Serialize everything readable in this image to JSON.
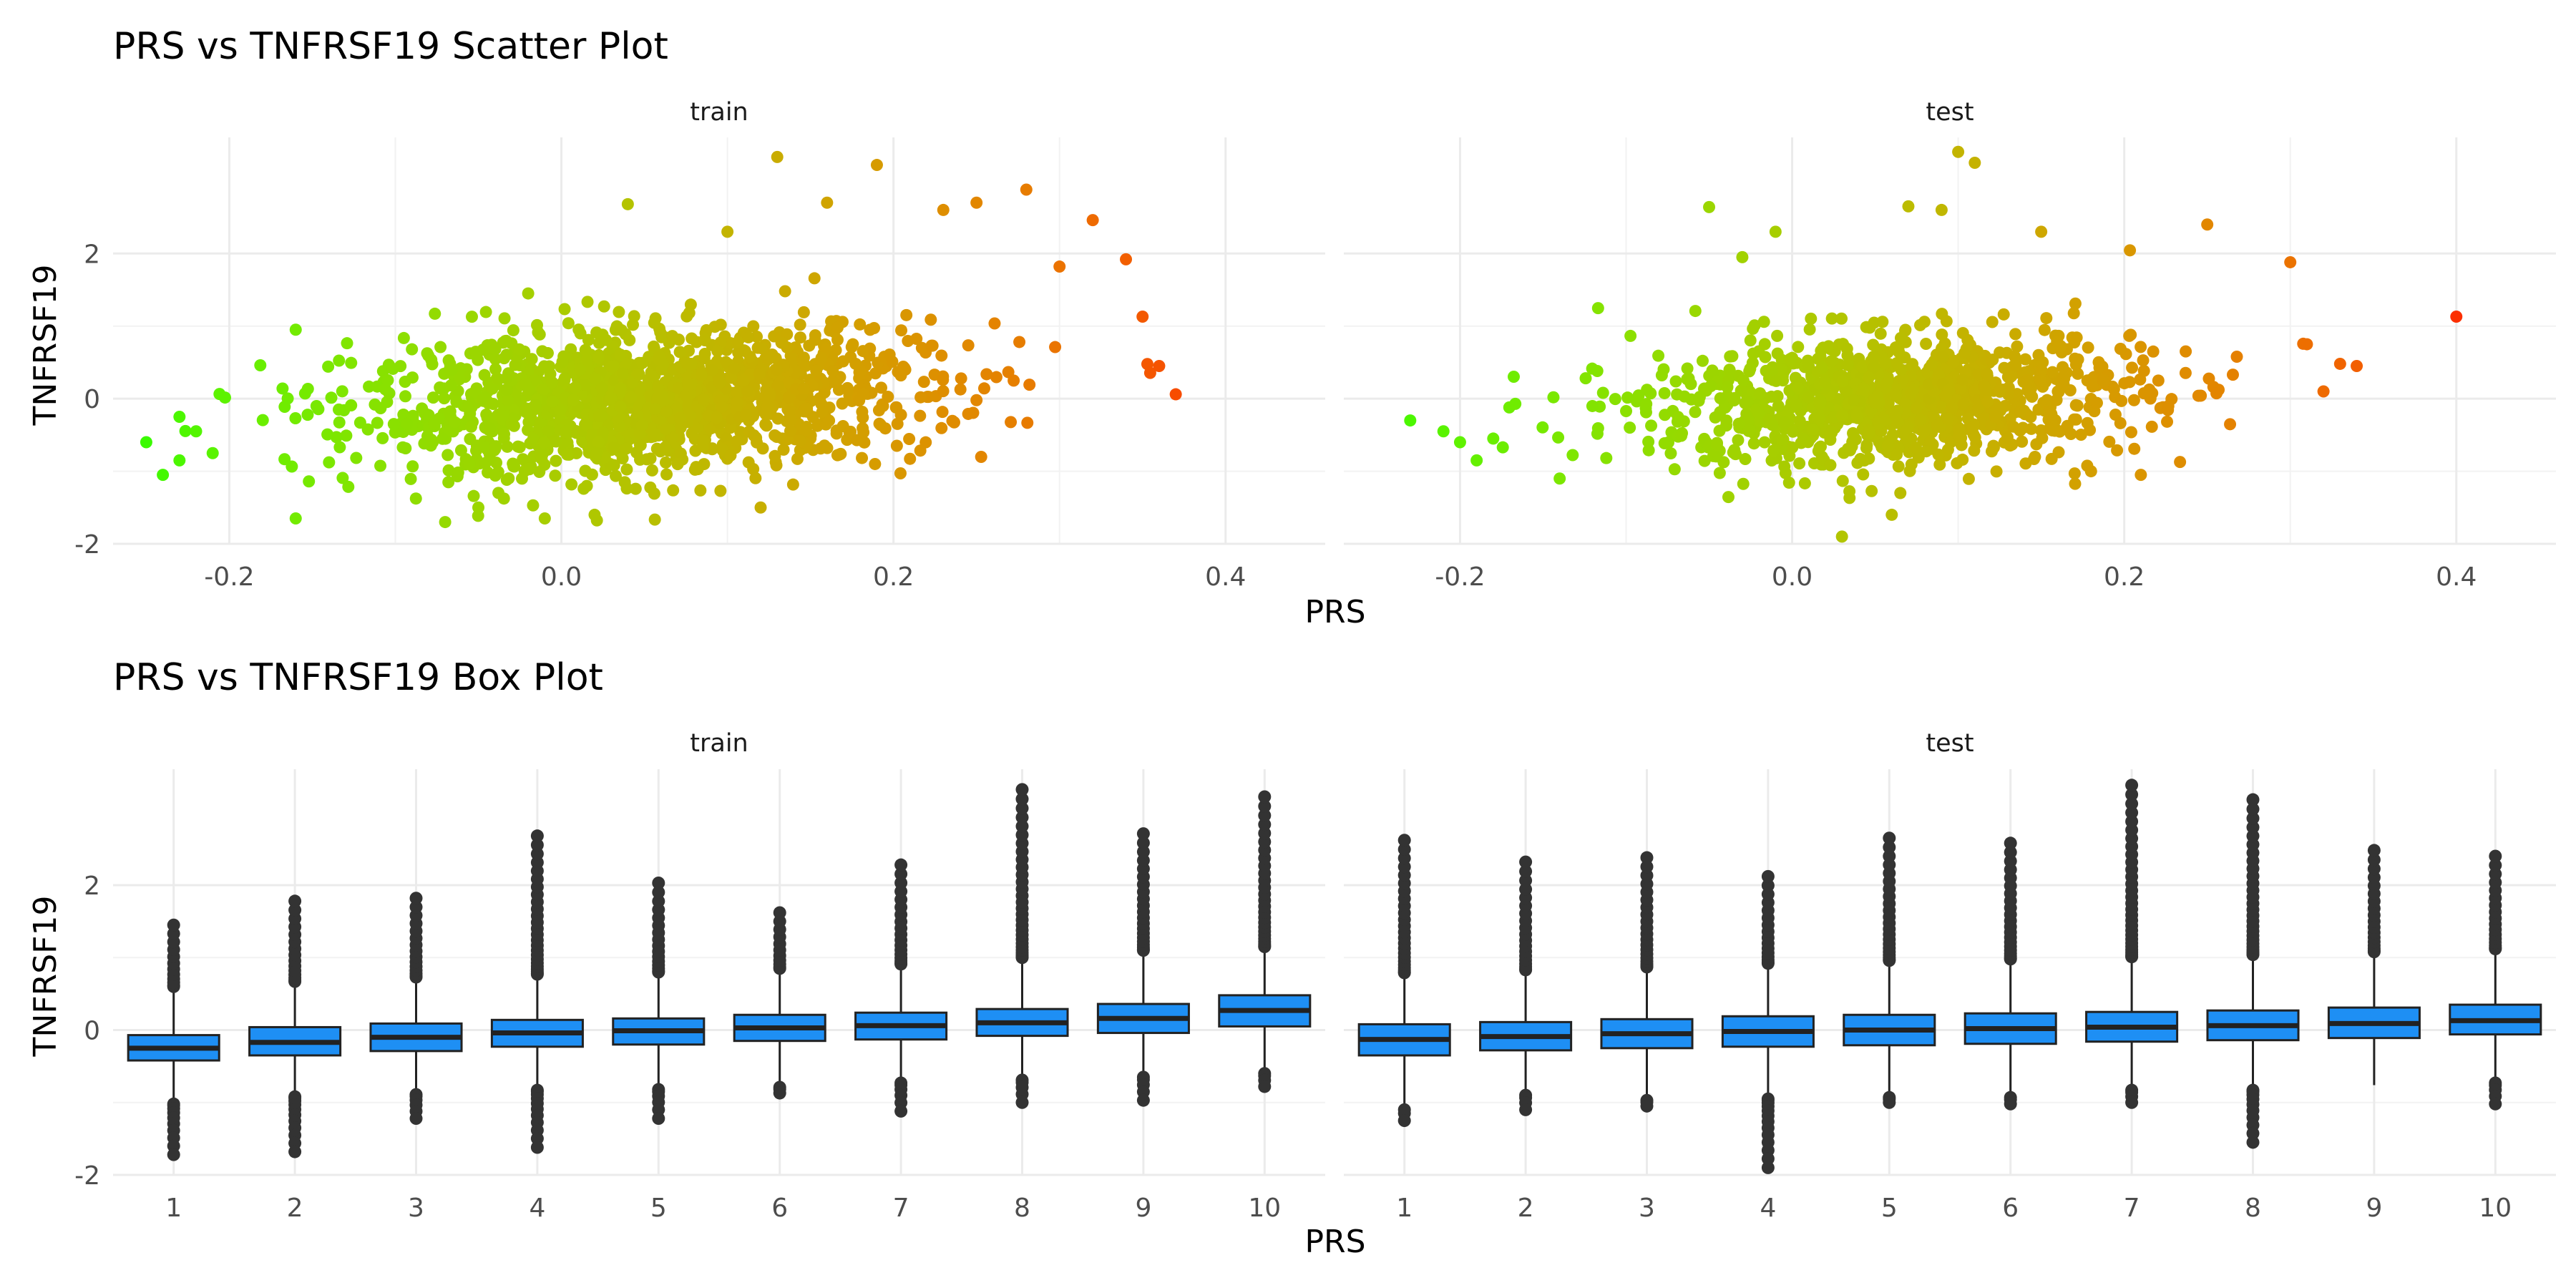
{
  "chart_data": [
    {
      "type": "scatter",
      "title": "PRS vs TNFRSF19 Scatter Plot",
      "xlabel": "PRS",
      "ylabel": "TNFRSF19",
      "xlim": [
        -0.27,
        0.46
      ],
      "ylim": [
        -2.0,
        3.6
      ],
      "x_ticks": [
        "-0.2",
        "0.0",
        "0.2",
        "0.4"
      ],
      "x_tick_values": [
        -0.2,
        0.0,
        0.2,
        0.4
      ],
      "y_ticks": [
        "-2",
        "0",
        "2"
      ],
      "y_tick_values": [
        -2,
        0,
        2
      ],
      "grid": true,
      "color_gradient": [
        "#00ff00",
        "#ff0000"
      ],
      "color_range": [
        -0.28,
        0.42
      ],
      "facets": [
        {
          "label": "train",
          "approx_n": 1500,
          "x_center": 0.05,
          "x_spread": 0.085,
          "trend_slope": 2.4,
          "y_intercept": -0.15,
          "y_noise_sd": 0.48,
          "outliers": [
            [
              -0.25,
              -0.6
            ],
            [
              -0.24,
              -1.05
            ],
            [
              -0.23,
              -0.85
            ],
            [
              -0.23,
              -0.25
            ],
            [
              -0.22,
              -0.45
            ],
            [
              -0.21,
              -0.75
            ],
            [
              -0.16,
              -1.65
            ],
            [
              -0.16,
              0.95
            ],
            [
              -0.09,
              0.68
            ],
            [
              -0.07,
              -1.7
            ],
            [
              -0.05,
              -1.5
            ],
            [
              -0.02,
              1.45
            ],
            [
              -0.01,
              -1.65
            ],
            [
              0.02,
              -1.6
            ],
            [
              0.04,
              2.68
            ],
            [
              0.1,
              2.3
            ],
            [
              0.12,
              -1.5
            ],
            [
              0.13,
              3.33
            ],
            [
              0.16,
              2.7
            ],
            [
              0.19,
              3.22
            ],
            [
              0.23,
              2.6
            ],
            [
              0.25,
              2.7
            ],
            [
              0.28,
              2.88
            ],
            [
              0.3,
              1.82
            ],
            [
              0.32,
              2.46
            ],
            [
              0.34,
              1.92
            ],
            [
              0.35,
              1.13
            ],
            [
              0.36,
              0.45
            ],
            [
              0.37,
              0.06
            ]
          ]
        },
        {
          "label": "test",
          "approx_n": 1100,
          "x_center": 0.06,
          "x_spread": 0.075,
          "trend_slope": 1.9,
          "y_intercept": -0.12,
          "y_noise_sd": 0.45,
          "outliers": [
            [
              -0.23,
              -0.3
            ],
            [
              -0.21,
              -0.45
            ],
            [
              -0.2,
              -0.6
            ],
            [
              -0.19,
              -0.85
            ],
            [
              -0.18,
              -0.55
            ],
            [
              -0.14,
              -1.1
            ],
            [
              -0.05,
              2.64
            ],
            [
              -0.03,
              1.95
            ],
            [
              -0.01,
              2.3
            ],
            [
              0.03,
              -1.9
            ],
            [
              0.06,
              -1.6
            ],
            [
              0.07,
              2.65
            ],
            [
              0.09,
              2.6
            ],
            [
              0.1,
              3.4
            ],
            [
              0.11,
              3.25
            ],
            [
              0.15,
              2.3
            ],
            [
              0.18,
              -1.0
            ],
            [
              0.21,
              -1.05
            ],
            [
              0.25,
              2.4
            ],
            [
              0.3,
              1.88
            ],
            [
              0.31,
              0.75
            ],
            [
              0.32,
              0.1
            ],
            [
              0.33,
              0.48
            ],
            [
              0.34,
              0.45
            ],
            [
              0.4,
              1.13
            ]
          ]
        }
      ]
    },
    {
      "type": "box",
      "title": "PRS vs TNFRSF19 Box Plot",
      "xlabel": "PRS",
      "ylabel": "TNFRSF19",
      "categories": [
        "1",
        "2",
        "3",
        "4",
        "5",
        "6",
        "7",
        "8",
        "9",
        "10"
      ],
      "ylim": [
        -2.0,
        3.6
      ],
      "y_ticks": [
        "-2",
        "0",
        "2"
      ],
      "y_tick_values": [
        -2,
        0,
        2
      ],
      "grid": true,
      "box_fill": "#1e8ff4",
      "box_stroke": "#222222",
      "facets": [
        {
          "label": "train",
          "boxes": [
            {
              "q1": -0.42,
              "median": -0.25,
              "q3": -0.07,
              "wlo": -0.97,
              "whi": 0.55,
              "out_hi_top": 1.45,
              "out_lo_bottom": -1.72
            },
            {
              "q1": -0.35,
              "median": -0.17,
              "q3": 0.04,
              "wlo": -0.87,
              "whi": 0.62,
              "out_hi_top": 1.78,
              "out_lo_bottom": -1.68
            },
            {
              "q1": -0.29,
              "median": -0.1,
              "q3": 0.09,
              "wlo": -0.84,
              "whi": 0.68,
              "out_hi_top": 1.82,
              "out_lo_bottom": -1.22
            },
            {
              "q1": -0.23,
              "median": -0.04,
              "q3": 0.14,
              "wlo": -0.78,
              "whi": 0.72,
              "out_hi_top": 2.68,
              "out_lo_bottom": -1.62
            },
            {
              "q1": -0.2,
              "median": -0.01,
              "q3": 0.16,
              "wlo": -0.77,
              "whi": 0.75,
              "out_hi_top": 2.03,
              "out_lo_bottom": -1.22
            },
            {
              "q1": -0.15,
              "median": 0.03,
              "q3": 0.21,
              "wlo": -0.74,
              "whi": 0.8,
              "out_hi_top": 1.62,
              "out_lo_bottom": -0.87
            },
            {
              "q1": -0.13,
              "median": 0.06,
              "q3": 0.24,
              "wlo": -0.68,
              "whi": 0.86,
              "out_hi_top": 2.28,
              "out_lo_bottom": -1.12
            },
            {
              "q1": -0.08,
              "median": 0.1,
              "q3": 0.29,
              "wlo": -0.64,
              "whi": 0.95,
              "out_hi_top": 3.32,
              "out_lo_bottom": -1.0
            },
            {
              "q1": -0.04,
              "median": 0.16,
              "q3": 0.36,
              "wlo": -0.6,
              "whi": 1.05,
              "out_hi_top": 2.71,
              "out_lo_bottom": -0.97
            },
            {
              "q1": 0.05,
              "median": 0.27,
              "q3": 0.48,
              "wlo": -0.55,
              "whi": 1.1,
              "out_hi_top": 3.22,
              "out_lo_bottom": -0.78
            }
          ]
        },
        {
          "label": "test",
          "boxes": [
            {
              "q1": -0.35,
              "median": -0.13,
              "q3": 0.08,
              "wlo": -1.05,
              "whi": 0.74,
              "out_hi_top": 2.62,
              "out_lo_bottom": -1.25
            },
            {
              "q1": -0.28,
              "median": -0.09,
              "q3": 0.11,
              "wlo": -0.85,
              "whi": 0.78,
              "out_hi_top": 2.32,
              "out_lo_bottom": -1.1
            },
            {
              "q1": -0.25,
              "median": -0.05,
              "q3": 0.15,
              "wlo": -0.92,
              "whi": 0.82,
              "out_hi_top": 2.38,
              "out_lo_bottom": -1.05
            },
            {
              "q1": -0.23,
              "median": -0.02,
              "q3": 0.19,
              "wlo": -0.9,
              "whi": 0.87,
              "out_hi_top": 2.12,
              "out_lo_bottom": -1.9
            },
            {
              "q1": -0.21,
              "median": 0.0,
              "q3": 0.21,
              "wlo": -0.88,
              "whi": 0.91,
              "out_hi_top": 2.65,
              "out_lo_bottom": -1.0
            },
            {
              "q1": -0.19,
              "median": 0.02,
              "q3": 0.23,
              "wlo": -0.88,
              "whi": 0.93,
              "out_hi_top": 2.58,
              "out_lo_bottom": -1.02
            },
            {
              "q1": -0.16,
              "median": 0.04,
              "q3": 0.25,
              "wlo": -0.78,
              "whi": 0.96,
              "out_hi_top": 3.38,
              "out_lo_bottom": -1.0
            },
            {
              "q1": -0.14,
              "median": 0.06,
              "q3": 0.27,
              "wlo": -0.78,
              "whi": 0.99,
              "out_hi_top": 3.18,
              "out_lo_bottom": -1.55
            },
            {
              "q1": -0.11,
              "median": 0.09,
              "q3": 0.31,
              "wlo": -0.76,
              "whi": 1.03,
              "out_hi_top": 2.48,
              "out_lo_bottom": -0.76
            },
            {
              "q1": -0.06,
              "median": 0.13,
              "q3": 0.35,
              "wlo": -0.68,
              "whi": 1.07,
              "out_hi_top": 2.4,
              "out_lo_bottom": -1.02
            }
          ]
        }
      ]
    }
  ]
}
